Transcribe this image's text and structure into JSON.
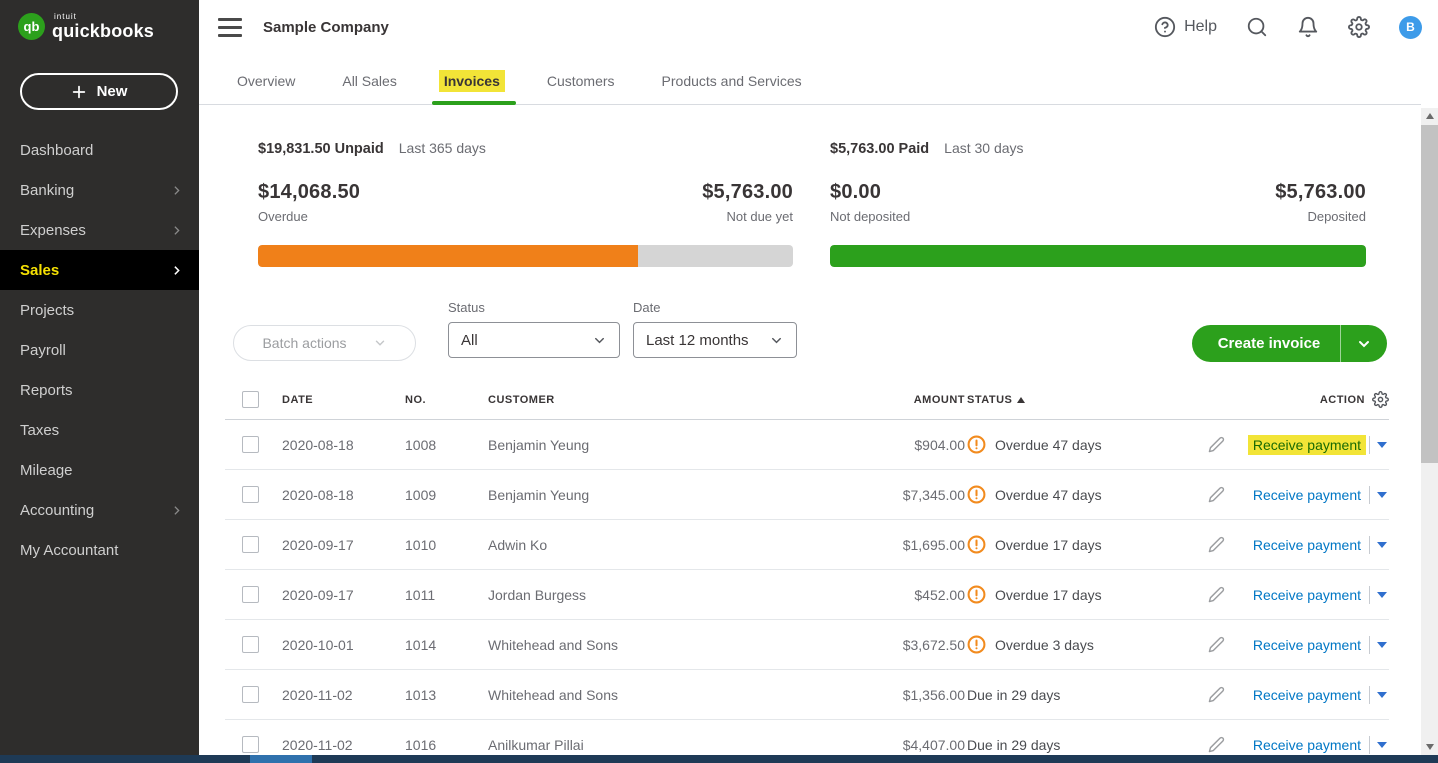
{
  "brand": {
    "logo_badge": "qb",
    "logo_sub": "intuit",
    "logo_main": "quickbooks",
    "brand_green": "#2ca01c"
  },
  "sidebar": {
    "new_button_label": "New",
    "items": [
      {
        "label": "Dashboard",
        "chevron": false,
        "active": false
      },
      {
        "label": "Banking",
        "chevron": true,
        "active": false
      },
      {
        "label": "Expenses",
        "chevron": true,
        "active": false
      },
      {
        "label": "Sales",
        "chevron": true,
        "active": true
      },
      {
        "label": "Projects",
        "chevron": false,
        "active": false
      },
      {
        "label": "Payroll",
        "chevron": false,
        "active": false
      },
      {
        "label": "Reports",
        "chevron": false,
        "active": false
      },
      {
        "label": "Taxes",
        "chevron": false,
        "active": false
      },
      {
        "label": "Mileage",
        "chevron": false,
        "active": false
      },
      {
        "label": "Accounting",
        "chevron": true,
        "active": false
      },
      {
        "label": "My Accountant",
        "chevron": false,
        "active": false
      }
    ]
  },
  "header": {
    "company_name": "Sample Company",
    "help_label": "Help",
    "avatar_initial": "B"
  },
  "tabs": [
    {
      "label": "Overview",
      "active": false
    },
    {
      "label": "All Sales",
      "active": false
    },
    {
      "label": "Invoices",
      "active": true,
      "highlighted": true
    },
    {
      "label": "Customers",
      "active": false
    },
    {
      "label": "Products and Services",
      "active": false
    }
  ],
  "summary": {
    "unpaid": {
      "total": "$19,831.50 Unpaid",
      "period": "Last 365 days",
      "left_amount": "$14,068.50",
      "left_label": "Overdue",
      "right_amount": "$5,763.00",
      "right_label": "Not due yet",
      "bar_percent": 71,
      "bar_color": "#f08019",
      "bar_rest_color": "#d5d5d5"
    },
    "paid": {
      "total": "$5,763.00 Paid",
      "period": "Last 30 days",
      "left_amount": "$0.00",
      "left_label": "Not deposited",
      "right_amount": "$5,763.00",
      "right_label": "Deposited",
      "bar_percent": 100,
      "bar_color": "#2ca01c"
    }
  },
  "filters": {
    "batch_actions_label": "Batch actions",
    "status_label": "Status",
    "status_value": "All",
    "date_label": "Date",
    "date_value": "Last 12 months",
    "create_invoice_label": "Create invoice"
  },
  "table": {
    "headers": {
      "date": "DATE",
      "no": "NO.",
      "customer": "CUSTOMER",
      "amount": "AMOUNT",
      "status": "STATUS",
      "action": "ACTION"
    },
    "sort": {
      "column": "STATUS",
      "direction": "ascending"
    },
    "rows": [
      {
        "date": "2020-08-18",
        "no": "1008",
        "customer": "Benjamin Yeung",
        "amount": "$904.00",
        "status": "Overdue 47 days",
        "alert": true,
        "action": "Receive payment",
        "highlighted": true
      },
      {
        "date": "2020-08-18",
        "no": "1009",
        "customer": "Benjamin Yeung",
        "amount": "$7,345.00",
        "status": "Overdue 47 days",
        "alert": true,
        "action": "Receive payment",
        "highlighted": false
      },
      {
        "date": "2020-09-17",
        "no": "1010",
        "customer": "Adwin Ko",
        "amount": "$1,695.00",
        "status": "Overdue 17 days",
        "alert": true,
        "action": "Receive payment",
        "highlighted": false
      },
      {
        "date": "2020-09-17",
        "no": "1011",
        "customer": "Jordan Burgess",
        "amount": "$452.00",
        "status": "Overdue 17 days",
        "alert": true,
        "action": "Receive payment",
        "highlighted": false
      },
      {
        "date": "2020-10-01",
        "no": "1014",
        "customer": "Whitehead and Sons",
        "amount": "$3,672.50",
        "status": "Overdue 3 days",
        "alert": true,
        "action": "Receive payment",
        "highlighted": false
      },
      {
        "date": "2020-11-02",
        "no": "1013",
        "customer": "Whitehead and Sons",
        "amount": "$1,356.00",
        "status": "Due in 29 days",
        "alert": false,
        "action": "Receive payment",
        "highlighted": false
      },
      {
        "date": "2020-11-02",
        "no": "1016",
        "customer": "Anilkumar Pillai",
        "amount": "$4,407.00",
        "status": "Due in 29 days",
        "alert": false,
        "action": "Receive payment",
        "highlighted": false
      }
    ]
  },
  "colors": {
    "sidebar_bg": "#2e2d2c",
    "active_nav_bg": "#000000",
    "active_nav_text": "#f5e003",
    "highlight_yellow": "#f2e437",
    "link_blue": "#0077c5",
    "overdue_orange": "#f28b1e",
    "qb_green": "#2ca01c",
    "avatar_blue": "#3d9be9",
    "text_dark": "#393536",
    "text_gray": "#6b6c72"
  }
}
